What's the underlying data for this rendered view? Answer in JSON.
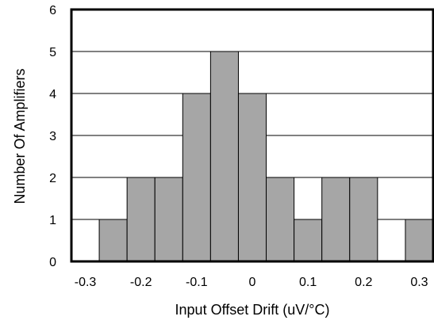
{
  "chart_data": {
    "type": "bar",
    "title": "",
    "xlabel": "Input Offset Drift (uV/°C)",
    "ylabel": "Number Of Amplifiers",
    "xlim": [
      -0.325,
      0.325
    ],
    "ylim": [
      0,
      6
    ],
    "x_ticks": [
      "-0.3",
      "-0.2",
      "-0.1",
      "0",
      "0.1",
      "0.2",
      "0.3"
    ],
    "x_tick_values": [
      -0.3,
      -0.2,
      -0.1,
      0,
      0.1,
      0.2,
      0.3
    ],
    "y_ticks": [
      "0",
      "1",
      "2",
      "3",
      "4",
      "5",
      "6"
    ],
    "y_tick_values": [
      0,
      1,
      2,
      3,
      4,
      5,
      6
    ],
    "bin_width": 0.05,
    "bins": [
      -0.3,
      -0.25,
      -0.2,
      -0.15,
      -0.1,
      -0.05,
      0,
      0.05,
      0.1,
      0.15,
      0.2,
      0.25,
      0.3
    ],
    "values": [
      0,
      1,
      2,
      2,
      4,
      5,
      4,
      2,
      1,
      2,
      2,
      0,
      1
    ],
    "grid": true,
    "bar_color": "#a6a6a6"
  }
}
